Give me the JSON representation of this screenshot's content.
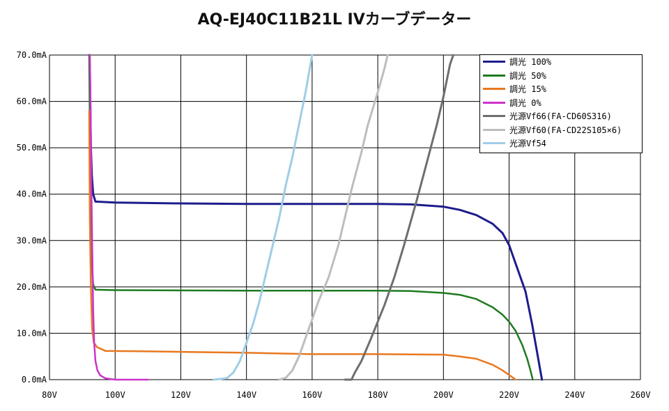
{
  "chart_data": {
    "type": "line",
    "title": "AQ-EJ40C11B21L IVカーブデーター",
    "xlim": [
      80,
      260
    ],
    "ylim": [
      0,
      70
    ],
    "x_ticks": [
      "80V",
      "100V",
      "120V",
      "140V",
      "160V",
      "180V",
      "200V",
      "220V",
      "240V",
      "260V"
    ],
    "y_ticks": [
      "0.0mA",
      "10.0mA",
      "20.0mA",
      "30.0mA",
      "40.0mA",
      "50.0mA",
      "60.0mA",
      "70.0mA"
    ],
    "grid": true,
    "legend_position": "top-right",
    "series": [
      {
        "name": "調光 100%",
        "color": "#1c1c8c",
        "width": 3,
        "points": [
          [
            92.2,
            70
          ],
          [
            92.4,
            62
          ],
          [
            92.6,
            50
          ],
          [
            92.9,
            44
          ],
          [
            93.3,
            40
          ],
          [
            94,
            38.4
          ],
          [
            100,
            38.2
          ],
          [
            120,
            38
          ],
          [
            140,
            37.9
          ],
          [
            180,
            37.9
          ],
          [
            190,
            37.8
          ],
          [
            200,
            37.3
          ],
          [
            205,
            36.6
          ],
          [
            210,
            35.5
          ],
          [
            215,
            33.6
          ],
          [
            218,
            31.6
          ],
          [
            220,
            29
          ],
          [
            222,
            25
          ],
          [
            225,
            19
          ],
          [
            227,
            12
          ],
          [
            228.5,
            6
          ],
          [
            229.5,
            2
          ],
          [
            230,
            0
          ]
        ]
      },
      {
        "name": "調光 50%",
        "color": "#1e7a1e",
        "width": 2.5,
        "points": [
          [
            92.1,
            70
          ],
          [
            92.3,
            55
          ],
          [
            92.6,
            35
          ],
          [
            92.9,
            25
          ],
          [
            93.3,
            20.5
          ],
          [
            94,
            19.4
          ],
          [
            100,
            19.3
          ],
          [
            140,
            19.2
          ],
          [
            180,
            19.2
          ],
          [
            190,
            19.1
          ],
          [
            200,
            18.7
          ],
          [
            205,
            18.3
          ],
          [
            210,
            17.4
          ],
          [
            215,
            15.6
          ],
          [
            218,
            14
          ],
          [
            220,
            12.5
          ],
          [
            222,
            10.5
          ],
          [
            224,
            7.5
          ],
          [
            225.5,
            4.5
          ],
          [
            226.5,
            2
          ],
          [
            227.2,
            0
          ]
        ]
      },
      {
        "name": "調光 15%",
        "color": "#e87820",
        "width": 2.5,
        "points": [
          [
            92.1,
            58
          ],
          [
            92.3,
            35
          ],
          [
            92.6,
            20
          ],
          [
            93,
            11
          ],
          [
            93.5,
            8
          ],
          [
            94.5,
            7
          ],
          [
            97,
            6.2
          ],
          [
            110,
            6.1
          ],
          [
            120,
            6
          ],
          [
            140,
            5.8
          ],
          [
            160,
            5.5
          ],
          [
            180,
            5.5
          ],
          [
            200,
            5.4
          ],
          [
            205,
            5
          ],
          [
            210,
            4.5
          ],
          [
            215,
            3.2
          ],
          [
            218,
            2
          ],
          [
            220,
            1
          ],
          [
            222,
            0
          ]
        ]
      },
      {
        "name": "調光 0%",
        "color": "#cc33cc",
        "width": 2.5,
        "points": [
          [
            92.3,
            70
          ],
          [
            92.5,
            60
          ],
          [
            92.7,
            45
          ],
          [
            93,
            30
          ],
          [
            93.3,
            15
          ],
          [
            93.6,
            8
          ],
          [
            94,
            4
          ],
          [
            94.6,
            2
          ],
          [
            95.5,
            0.9
          ],
          [
            97,
            0.3
          ],
          [
            100,
            0
          ],
          [
            105,
            0
          ],
          [
            110,
            0
          ]
        ]
      },
      {
        "name": "光源Vf66(FA-CD60S316)",
        "color": "#6e6e6e",
        "width": 3,
        "points": [
          [
            170,
            0
          ],
          [
            172,
            0
          ],
          [
            173,
            1.5
          ],
          [
            175,
            4
          ],
          [
            178,
            9
          ],
          [
            180,
            12.5
          ],
          [
            182,
            16
          ],
          [
            185,
            22
          ],
          [
            188,
            29
          ],
          [
            190,
            34
          ],
          [
            192,
            39
          ],
          [
            195,
            47
          ],
          [
            198,
            55
          ],
          [
            200,
            61
          ],
          [
            202,
            68
          ],
          [
            203,
            70
          ]
        ]
      },
      {
        "name": "光源Vf60(FA-CD22S105×6)",
        "color": "#bdbdbd",
        "width": 3,
        "points": [
          [
            150,
            0
          ],
          [
            152,
            0.4
          ],
          [
            154,
            2
          ],
          [
            156,
            5
          ],
          [
            158,
            9
          ],
          [
            160,
            13
          ],
          [
            162,
            17
          ],
          [
            165,
            22
          ],
          [
            168,
            29
          ],
          [
            170,
            35
          ],
          [
            172,
            41
          ],
          [
            175,
            49
          ],
          [
            177,
            55
          ],
          [
            180,
            62
          ],
          [
            182,
            67
          ],
          [
            183,
            70
          ]
        ]
      },
      {
        "name": "光源Vf54",
        "color": "#9fcde6",
        "width": 3,
        "points": [
          [
            130,
            0
          ],
          [
            134,
            0.3
          ],
          [
            136,
            1.5
          ],
          [
            138,
            4
          ],
          [
            140,
            8
          ],
          [
            142,
            12
          ],
          [
            144,
            17
          ],
          [
            146,
            23
          ],
          [
            148,
            29
          ],
          [
            150,
            35
          ],
          [
            152,
            42
          ],
          [
            154,
            48
          ],
          [
            156,
            55
          ],
          [
            158,
            62
          ],
          [
            160,
            70
          ]
        ]
      }
    ]
  }
}
